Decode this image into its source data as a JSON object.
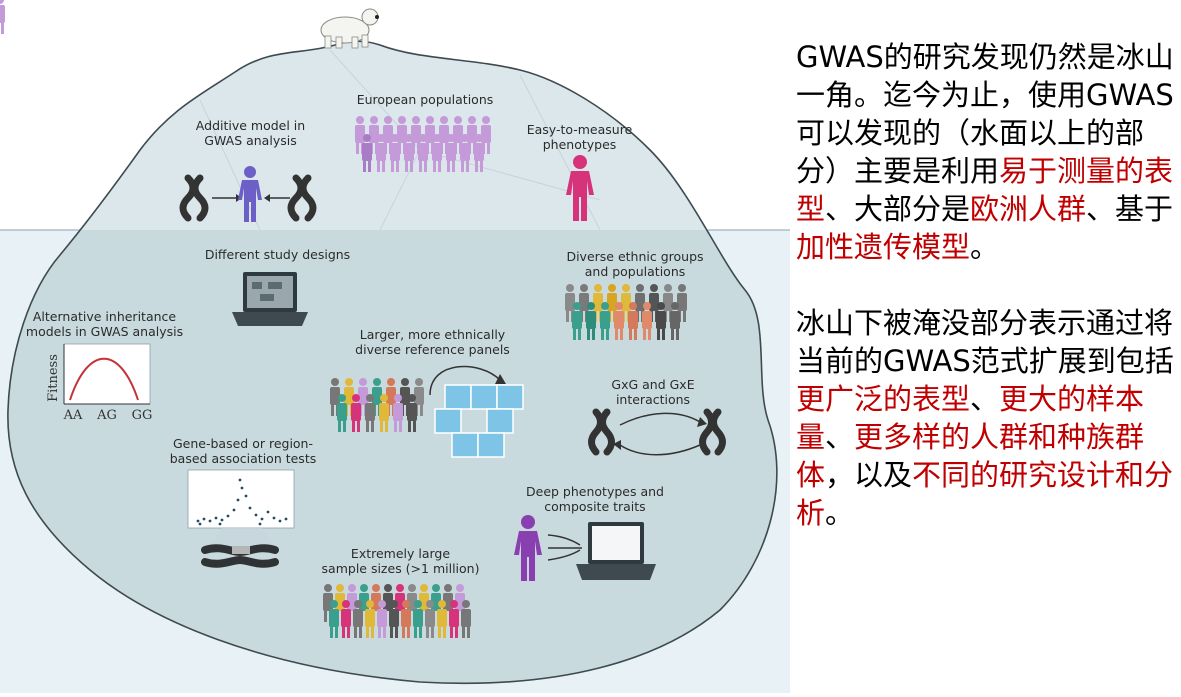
{
  "iceberg": {
    "above": {
      "additive": "Additive model in\nGWAS analysis",
      "european": "European populations",
      "easy": "Easy-to-measure\nphenotypes"
    },
    "below": {
      "designs": "Different study designs",
      "ethnic": "Diverse ethnic groups\nand populations",
      "inheritance": "Alternative inheritance\nmodels in GWAS analysis",
      "panels": "Larger, more ethnically\ndiverse reference panels",
      "gxg": "GxG and GxE\ninteractions",
      "gene_tests": "Gene-based or region-\nbased association tests",
      "deep": "Deep phenotypes and\ncomposite traits",
      "large": "Extremely large\nsample sizes (>1 million)"
    },
    "fitness_plot": {
      "ylabel": "Fitness",
      "ticks": [
        "AA",
        "AG",
        "GG"
      ]
    }
  },
  "caption": {
    "p1": {
      "a": "GWAS的研究发现仍然是冰山一角。迄今为止，使用GWAS可以发现的（水面以上的部分）主要是利用",
      "h1": "易于测量的表型",
      "b": "、大部分是",
      "h2": "欧洲人群",
      "c": "、基于",
      "h3": "加性遗传模型",
      "d": "。"
    },
    "p2": {
      "a": "冰山下被淹没部分表示通过将当前的GWAS范式扩展到包括",
      "h1": "更广泛的表型",
      "b": "、",
      "h2": "更大的样本量",
      "c": "、",
      "h3": "更多样的人群和种族群体",
      "d": "，以及",
      "h4": "不同的研究设计和分析",
      "e": "。"
    }
  },
  "colors": {
    "highlight": "#c00000",
    "water": "#e6f0f5",
    "ice_top": "#d6e4e8",
    "ice_bottom": "#c3d4da"
  }
}
